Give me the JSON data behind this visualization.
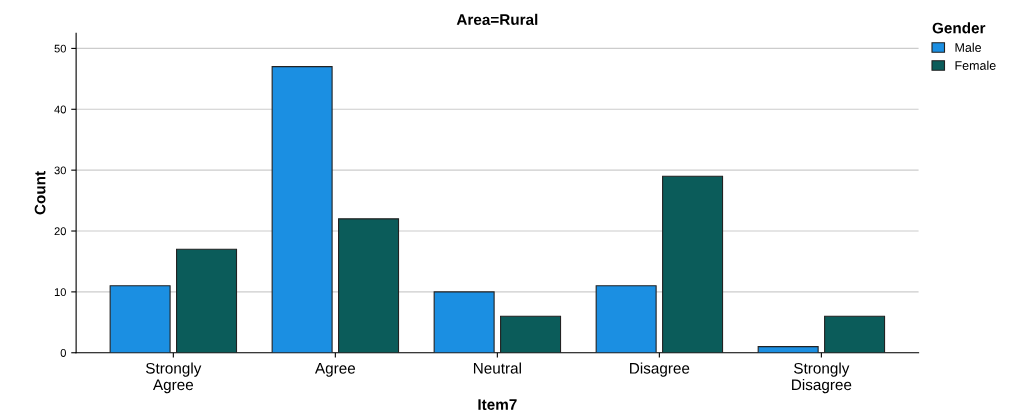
{
  "chart_data": {
    "type": "bar",
    "title": "Area=Rural",
    "xlabel": "Item7",
    "ylabel": "Count",
    "legend_title": "Gender",
    "categories": [
      "Strongly\nAgree",
      "Agree",
      "Neutral",
      "Disagree",
      "Strongly\nDisagree"
    ],
    "series": [
      {
        "name": "Male",
        "color": "#1b8fe2",
        "values": [
          11,
          47,
          10,
          11,
          1
        ]
      },
      {
        "name": "Female",
        "color": "#0b5c5a",
        "values": [
          17,
          22,
          6,
          29,
          6
        ]
      }
    ],
    "ylim": [
      0,
      52.5
    ],
    "yticks": [
      0,
      10,
      20,
      30,
      40,
      50
    ],
    "grid": "y",
    "legend": "top right"
  }
}
